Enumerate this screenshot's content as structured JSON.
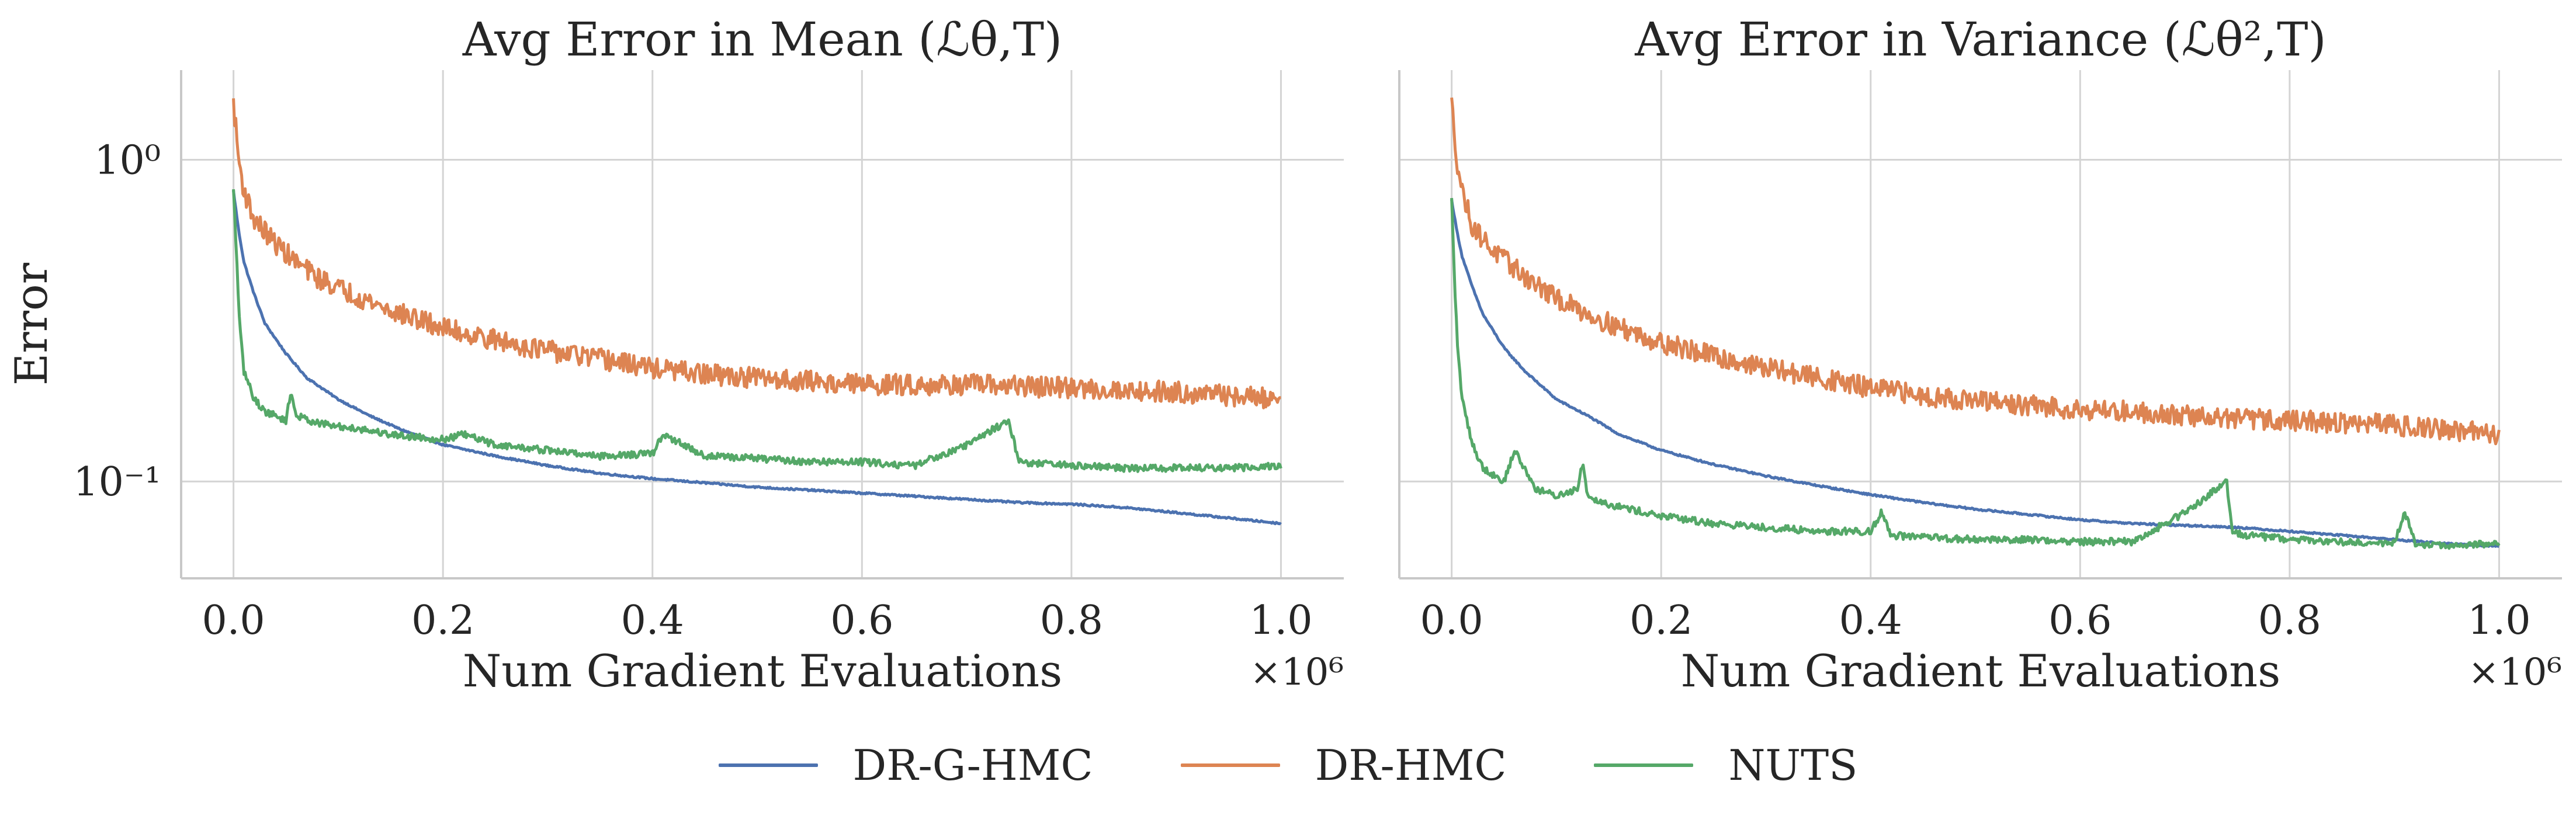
{
  "chart_data": [
    {
      "type": "line",
      "title": "Avg Error in Mean (ℒθ,T)",
      "xlabel": "Num Gradient Evaluations",
      "ylabel": "Error",
      "x_multiplier": "×10⁶",
      "xlim": [
        -0.05,
        1.06
      ],
      "ylim": [
        0.05,
        1.9
      ],
      "yscale": "log",
      "xticks": [
        0.0,
        0.2,
        0.4,
        0.6,
        0.8,
        1.0
      ],
      "xtick_labels": [
        "0.0",
        "0.2",
        "0.4",
        "0.6",
        "0.8",
        "1.0"
      ],
      "yticks": [
        1,
        0.1
      ],
      "ytick_labels": [
        "10⁰",
        "10⁻¹"
      ],
      "grid": true,
      "series": [
        {
          "name": "DR-G-HMC",
          "color": "#4c72b0",
          "x": [
            0.0,
            0.005,
            0.01,
            0.02,
            0.03,
            0.05,
            0.07,
            0.1,
            0.13,
            0.16,
            0.2,
            0.25,
            0.3,
            0.35,
            0.4,
            0.45,
            0.5,
            0.55,
            0.6,
            0.65,
            0.7,
            0.75,
            0.8,
            0.85,
            0.9,
            0.95,
            1.0
          ],
          "y": [
            0.8,
            0.6,
            0.48,
            0.38,
            0.31,
            0.25,
            0.21,
            0.18,
            0.16,
            0.145,
            0.13,
            0.12,
            0.112,
            0.106,
            0.102,
            0.099,
            0.096,
            0.094,
            0.092,
            0.09,
            0.088,
            0.086,
            0.085,
            0.083,
            0.08,
            0.077,
            0.074
          ]
        },
        {
          "name": "DR-HMC",
          "color": "#dd8452",
          "x": [
            0.0,
            0.005,
            0.01,
            0.02,
            0.04,
            0.06,
            0.08,
            0.1,
            0.15,
            0.2,
            0.25,
            0.3,
            0.35,
            0.4,
            0.45,
            0.5,
            0.55,
            0.6,
            0.65,
            0.7,
            0.75,
            0.8,
            0.85,
            0.9,
            0.95,
            1.0
          ],
          "y": [
            1.5,
            1.0,
            0.8,
            0.65,
            0.55,
            0.48,
            0.43,
            0.4,
            0.34,
            0.3,
            0.275,
            0.255,
            0.24,
            0.225,
            0.215,
            0.21,
            0.205,
            0.2,
            0.2,
            0.2,
            0.198,
            0.195,
            0.192,
            0.19,
            0.185,
            0.18
          ]
        },
        {
          "name": "NUTS",
          "color": "#55a868",
          "x": [
            0.0,
            0.003,
            0.006,
            0.01,
            0.02,
            0.03,
            0.05,
            0.055,
            0.06,
            0.08,
            0.1,
            0.12,
            0.15,
            0.2,
            0.22,
            0.25,
            0.3,
            0.35,
            0.4,
            0.41,
            0.45,
            0.5,
            0.55,
            0.6,
            0.65,
            0.7,
            0.74,
            0.75,
            0.8,
            0.85,
            0.9,
            0.95,
            1.0
          ],
          "y": [
            0.8,
            0.5,
            0.3,
            0.22,
            0.18,
            0.165,
            0.155,
            0.19,
            0.16,
            0.152,
            0.148,
            0.146,
            0.14,
            0.135,
            0.14,
            0.13,
            0.125,
            0.12,
            0.122,
            0.14,
            0.12,
            0.118,
            0.115,
            0.115,
            0.112,
            0.13,
            0.155,
            0.115,
            0.112,
            0.11,
            0.11,
            0.11,
            0.112
          ]
        }
      ]
    },
    {
      "type": "line",
      "title": "Avg Error in Variance (ℒθ²,T)",
      "xlabel": "Num Gradient Evaluations",
      "ylabel": "",
      "x_multiplier": "×10⁶",
      "xlim": [
        -0.05,
        1.06
      ],
      "ylim": [
        0.05,
        1.9
      ],
      "yscale": "log",
      "xticks": [
        0.0,
        0.2,
        0.4,
        0.6,
        0.8,
        1.0
      ],
      "xtick_labels": [
        "0.0",
        "0.2",
        "0.4",
        "0.6",
        "0.8",
        "1.0"
      ],
      "grid": true,
      "series": [
        {
          "name": "DR-G-HMC",
          "color": "#4c72b0",
          "x": [
            0.0,
            0.005,
            0.01,
            0.02,
            0.03,
            0.05,
            0.07,
            0.1,
            0.13,
            0.16,
            0.2,
            0.25,
            0.3,
            0.35,
            0.4,
            0.45,
            0.5,
            0.55,
            0.6,
            0.65,
            0.7,
            0.75,
            0.8,
            0.85,
            0.9,
            0.95,
            1.0
          ],
          "y": [
            0.75,
            0.6,
            0.5,
            0.4,
            0.33,
            0.26,
            0.22,
            0.18,
            0.16,
            0.14,
            0.125,
            0.113,
            0.104,
            0.097,
            0.091,
            0.086,
            0.082,
            0.079,
            0.076,
            0.074,
            0.073,
            0.072,
            0.07,
            0.068,
            0.066,
            0.064,
            0.063
          ]
        },
        {
          "name": "DR-HMC",
          "color": "#dd8452",
          "x": [
            0.0,
            0.005,
            0.01,
            0.02,
            0.04,
            0.06,
            0.08,
            0.1,
            0.15,
            0.2,
            0.25,
            0.3,
            0.35,
            0.4,
            0.45,
            0.5,
            0.55,
            0.6,
            0.65,
            0.7,
            0.75,
            0.8,
            0.85,
            0.9,
            0.95,
            1.0
          ],
          "y": [
            1.5,
            1.0,
            0.8,
            0.62,
            0.52,
            0.46,
            0.41,
            0.37,
            0.31,
            0.27,
            0.245,
            0.225,
            0.21,
            0.195,
            0.185,
            0.178,
            0.172,
            0.168,
            0.165,
            0.16,
            0.157,
            0.155,
            0.152,
            0.15,
            0.145,
            0.14
          ]
        },
        {
          "name": "NUTS",
          "color": "#55a868",
          "x": [
            0.0,
            0.003,
            0.006,
            0.01,
            0.02,
            0.03,
            0.05,
            0.06,
            0.08,
            0.1,
            0.12,
            0.125,
            0.13,
            0.15,
            0.2,
            0.25,
            0.3,
            0.35,
            0.4,
            0.41,
            0.42,
            0.45,
            0.5,
            0.55,
            0.6,
            0.65,
            0.7,
            0.74,
            0.745,
            0.76,
            0.8,
            0.85,
            0.9,
            0.91,
            0.92,
            0.95,
            1.0
          ],
          "y": [
            0.75,
            0.4,
            0.25,
            0.18,
            0.13,
            0.11,
            0.1,
            0.125,
            0.095,
            0.09,
            0.095,
            0.115,
            0.09,
            0.085,
            0.078,
            0.074,
            0.072,
            0.07,
            0.07,
            0.08,
            0.068,
            0.067,
            0.066,
            0.066,
            0.065,
            0.065,
            0.08,
            0.1,
            0.07,
            0.068,
            0.066,
            0.065,
            0.064,
            0.08,
            0.064,
            0.063,
            0.064
          ]
        }
      ]
    }
  ],
  "legend": [
    {
      "label": "DR-G-HMC",
      "color": "#4c72b0"
    },
    {
      "label": "DR-HMC",
      "color": "#dd8452"
    },
    {
      "label": "NUTS",
      "color": "#55a868"
    }
  ]
}
